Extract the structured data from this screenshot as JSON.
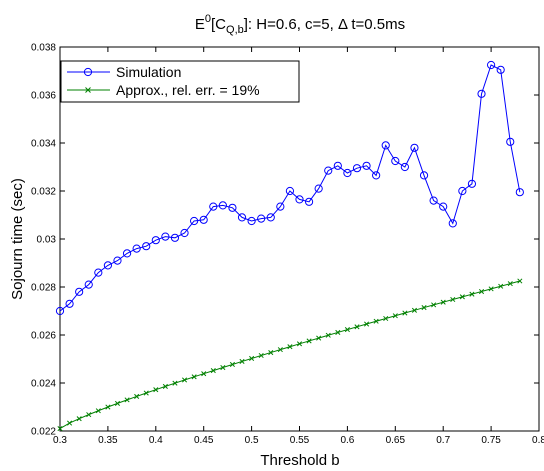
{
  "chart_data": {
    "type": "line",
    "title": {
      "main": "E",
      "sup": "0",
      "bracket_open": "[C",
      "sub": "Q,b",
      "rest": "]: H=0.6, c=5, Δ t=0.5ms"
    },
    "xlabel": "Threshold b",
    "ylabel": "Sojourn time (sec)",
    "xlim": [
      0.3,
      0.8
    ],
    "ylim": [
      0.022,
      0.038
    ],
    "xticks": [
      "0.3",
      "0.35",
      "0.4",
      "0.45",
      "0.5",
      "0.55",
      "0.6",
      "0.65",
      "0.7",
      "0.75",
      "0.8"
    ],
    "yticks": [
      "0.022",
      "0.024",
      "0.026",
      "0.028",
      "0.03",
      "0.032",
      "0.034",
      "0.036",
      "0.038"
    ],
    "grid": false,
    "legend_position": "top-left",
    "series": [
      {
        "name": "Simulation",
        "color": "#0000ff",
        "marker": "circle",
        "x": [
          0.3,
          0.31,
          0.32,
          0.33,
          0.34,
          0.35,
          0.36,
          0.37,
          0.38,
          0.39,
          0.4,
          0.41,
          0.42,
          0.43,
          0.44,
          0.45,
          0.46,
          0.47,
          0.48,
          0.49,
          0.5,
          0.51,
          0.52,
          0.53,
          0.54,
          0.55,
          0.56,
          0.57,
          0.58,
          0.59,
          0.6,
          0.61,
          0.62,
          0.63,
          0.64,
          0.65,
          0.66,
          0.67,
          0.68,
          0.69,
          0.7,
          0.71,
          0.72,
          0.73,
          0.74,
          0.75,
          0.76,
          0.77,
          0.78
        ],
        "y": [
          0.027,
          0.0273,
          0.0278,
          0.0281,
          0.0286,
          0.0289,
          0.0291,
          0.0294,
          0.0296,
          0.0297,
          0.02995,
          0.0301,
          0.03005,
          0.03025,
          0.03075,
          0.0308,
          0.03135,
          0.0314,
          0.0313,
          0.0309,
          0.03075,
          0.03085,
          0.0309,
          0.03135,
          0.032,
          0.03165,
          0.03155,
          0.0321,
          0.03285,
          0.03305,
          0.03275,
          0.03295,
          0.03305,
          0.03265,
          0.0339,
          0.03325,
          0.033,
          0.0338,
          0.03265,
          0.0316,
          0.03135,
          0.03065,
          0.032,
          0.0323,
          0.03605,
          0.03725,
          0.03705,
          0.03405,
          0.03195
        ]
      },
      {
        "name": "Approx., rel. err. = 19%",
        "color": "#008000",
        "marker": "x",
        "x_start": 0.3,
        "x_end": 0.78,
        "x_step": 0.01,
        "y_start": 0.0221,
        "y_end": 0.02825,
        "curve_exponent": 0.85
      }
    ]
  }
}
